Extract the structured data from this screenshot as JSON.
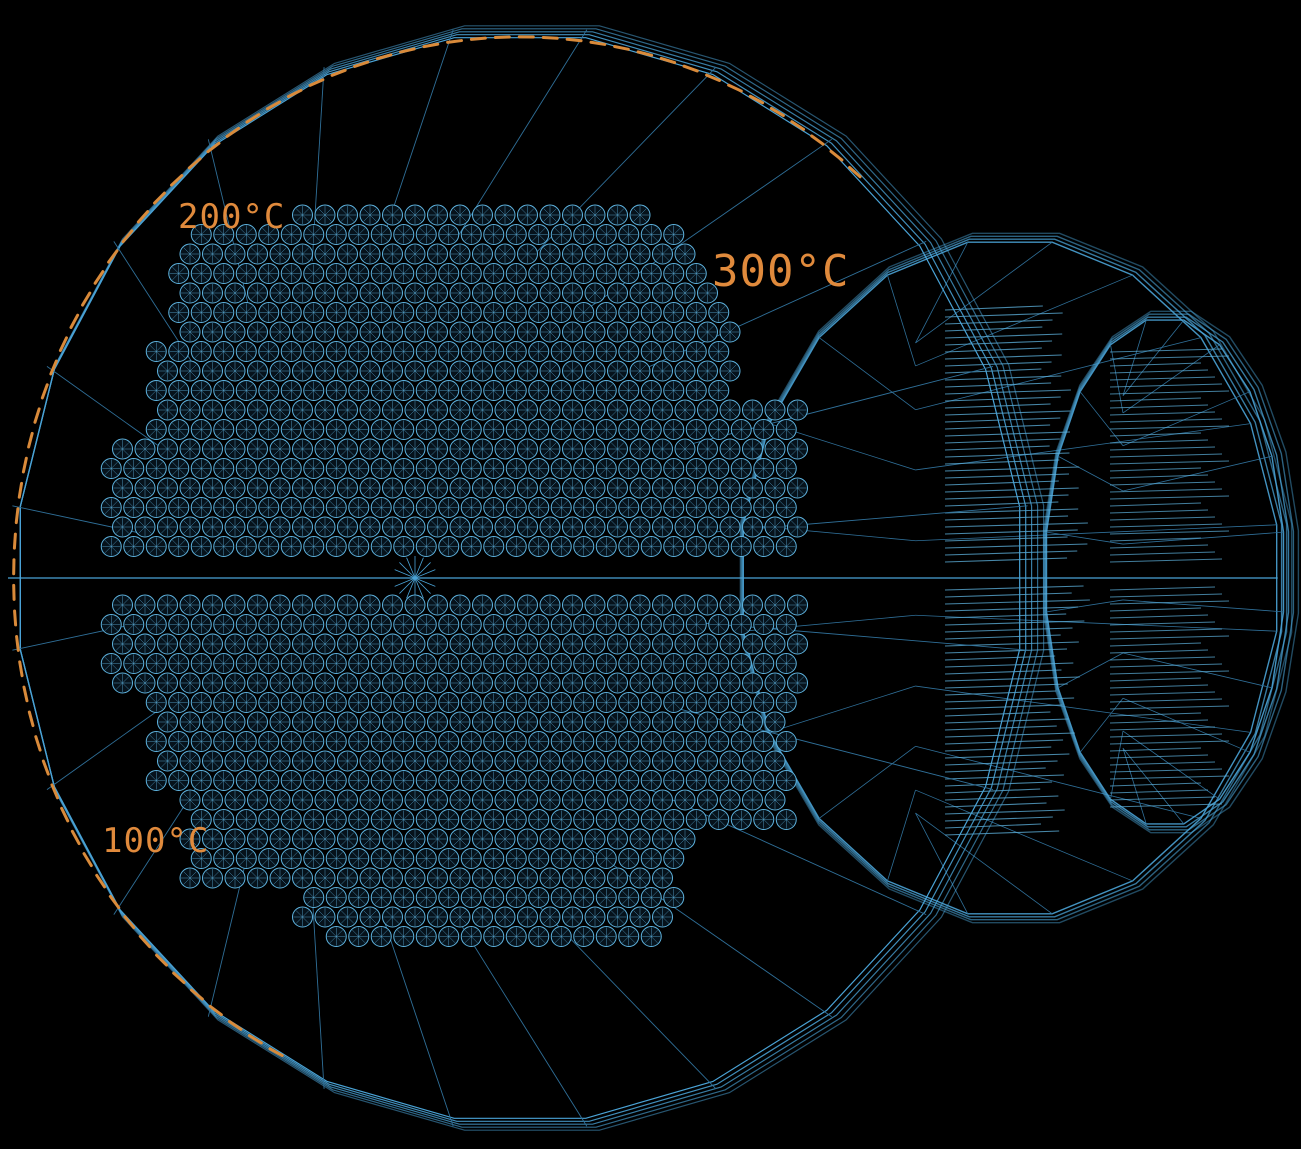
{
  "colors": {
    "background": "#000000",
    "wireframe": "#4aa3d6",
    "wireframe_dim": "#2f6f98",
    "tube": "#5fb4e0",
    "scale_tick": "#d98a3a",
    "label": "#e08a3c"
  },
  "scale": {
    "label_100": "100°C",
    "label_200": "200°C",
    "label_300": "300°C",
    "tick_count": 72
  },
  "structure": {
    "shell_polygon_sides": 24,
    "rings_behind": 2
  },
  "icons": {
    "tube": "wireframe-tube-icon",
    "center_hub": "hub-icon"
  }
}
